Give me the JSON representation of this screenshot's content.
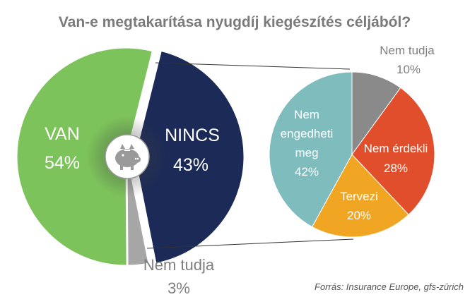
{
  "chart_data": [
    {
      "type": "pie",
      "title": "Van-e megtakarítása nyugdíj kiegészítés céljából?",
      "slices": [
        {
          "label": "VAN",
          "value": 54,
          "value_label": "54%",
          "color": "#7dc35b"
        },
        {
          "label": "NINCS",
          "value": 43,
          "value_label": "43%",
          "color": "#1b2a57"
        },
        {
          "label": "Nem tudja",
          "value": 3,
          "value_label": "3%",
          "color": "#a6a6a6"
        }
      ]
    },
    {
      "type": "pie",
      "slices": [
        {
          "label": "Nem tudja",
          "value": 10,
          "value_label": "10%",
          "color": "#8a8a8a"
        },
        {
          "label": "Nem érdekli",
          "value": 28,
          "value_label": "28%",
          "color": "#e04e2c"
        },
        {
          "label": "Tervezi",
          "value": 20,
          "value_label": "20%",
          "color": "#f0a622"
        },
        {
          "label": "Nem engedheti meg",
          "label_lines": [
            "Nem",
            "engedheti",
            "meg"
          ],
          "value": 42,
          "value_label": "42%",
          "color": "#7fbcbd"
        }
      ]
    }
  ],
  "icon": "piggy-bank-icon",
  "source": "Forrás: Insurance Europe, gfs-zürich"
}
